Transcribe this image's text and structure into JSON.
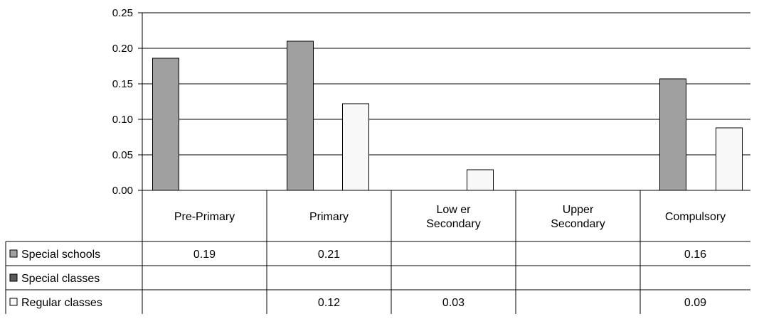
{
  "chart_data": {
    "type": "bar",
    "categories": [
      [
        "Pre-Primary"
      ],
      [
        "Primary"
      ],
      [
        "Low er",
        "Secondary"
      ],
      [
        "Upper",
        "Secondary"
      ],
      [
        "Compulsory"
      ]
    ],
    "series": [
      {
        "name": "Special schools",
        "color": "#a0a0a0",
        "values": [
          0.186,
          0.21,
          null,
          null,
          0.157
        ],
        "labels": [
          "0.19",
          "0.21",
          "",
          "",
          "0.16"
        ]
      },
      {
        "name": "Special classes",
        "color": "#595959",
        "values": [
          null,
          null,
          null,
          null,
          null
        ],
        "labels": [
          "",
          "",
          "",
          "",
          ""
        ]
      },
      {
        "name": "Regular classes",
        "color": "#f8f8f8",
        "values": [
          null,
          0.122,
          0.029,
          null,
          0.088
        ],
        "labels": [
          "",
          "0.12",
          "0.03",
          "",
          "0.09"
        ]
      }
    ],
    "ylim": [
      0,
      0.25
    ],
    "yticks": [
      "0.00",
      "0.05",
      "0.10",
      "0.15",
      "0.20",
      "0.25"
    ],
    "grid": true,
    "legend": "data-table-left"
  }
}
